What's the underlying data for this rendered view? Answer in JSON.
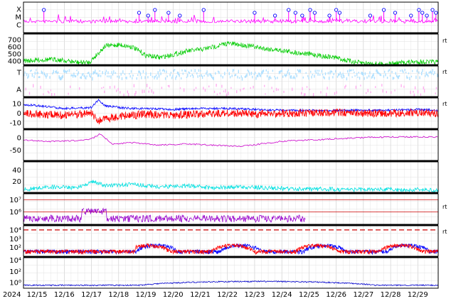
{
  "chart_data": {
    "type": "line",
    "x_axis": {
      "type": "date",
      "range": [
        "2024-12-14T12:00",
        "2024-12-29T18:00"
      ],
      "year_label": "2024",
      "tick_labels": [
        "12/15",
        "12/16",
        "12/17",
        "12/18",
        "12/19",
        "12/20",
        "12/21",
        "12/22",
        "12/23",
        "12/24",
        "12/25",
        "12/26",
        "12/27",
        "12/28",
        "12/29"
      ],
      "grid": true
    },
    "panels": [
      {
        "id": "xray-flare",
        "type": "scatter",
        "y_tick_labels": [
          "X",
          "M",
          "C"
        ],
        "colors": {
          "line": "#ff00ff",
          "marker": "#0000ff"
        },
        "flare_markers_x": [
          "2024-12-15T06:00",
          "2024-12-18T18:00",
          "2024-12-19T02:00",
          "2024-12-19T08:00",
          "2024-12-19T20:00",
          "2024-12-20T06:00",
          "2024-12-21T03:00",
          "2024-12-23T00:00",
          "2024-12-23T18:00",
          "2024-12-24T06:00",
          "2024-12-24T12:00",
          "2024-12-24T18:00",
          "2024-12-25T01:00",
          "2024-12-25T05:00",
          "2024-12-25T18:00",
          "2024-12-26T00:00",
          "2024-12-26T03:00",
          "2024-12-27T06:00",
          "2024-12-27T18:00",
          "2024-12-28T04:00",
          "2024-12-28T18:00",
          "2024-12-29T01:00",
          "2024-12-29T04:00",
          "2024-12-29T08:00",
          "2024-12-29T13:00",
          "2024-12-29T16:00"
        ]
      },
      {
        "id": "solar-wind-speed",
        "y_ticks": [
          400,
          500,
          600,
          700
        ],
        "ylim": [
          350,
          780
        ],
        "color": "#00cc00",
        "series": [
          {
            "x": [
              "2024-12-14T12:00",
              "2024-12-15T06:00",
              "2024-12-15T18:00",
              "2024-12-16T12:00",
              "2024-12-16T22:00",
              "2024-12-17T12:00",
              "2024-12-18T00:00",
              "2024-12-18T12:00",
              "2024-12-19T00:00",
              "2024-12-19T12:00",
              "2024-12-20T00:00",
              "2024-12-20T12:00",
              "2024-12-21T00:00",
              "2024-12-21T12:00",
              "2024-12-22T00:00",
              "2024-12-22T12:00",
              "2024-12-23T00:00",
              "2024-12-23T12:00",
              "2024-12-24T00:00",
              "2024-12-24T12:00",
              "2024-12-25T00:00",
              "2024-12-25T12:00",
              "2024-12-26T00:00",
              "2024-12-26T06:00",
              "2024-12-26T18:00",
              "2024-12-27T12:00",
              "2024-12-28T00:00",
              "2024-12-28T12:00",
              "2024-12-29T00:00",
              "2024-12-29T18:00"
            ],
            "values": [
              400,
              420,
              420,
              380,
              380,
              610,
              630,
              600,
              480,
              450,
              490,
              540,
              560,
              600,
              650,
              630,
              600,
              570,
              550,
              520,
              500,
              470,
              450,
              420,
              380,
              360,
              360,
              380,
              390,
              385
            ]
          }
        ]
      },
      {
        "id": "imf-sector",
        "type": "scatter",
        "y_tick_labels": [
          "T",
          "A"
        ],
        "colors": {
          "toward": "#b0e0ff",
          "away": "#ffb0f0"
        }
      },
      {
        "id": "imf-bz-bt",
        "y_ticks": [
          -10,
          0,
          10
        ],
        "ylim": [
          -16,
          16
        ],
        "series": [
          {
            "color": "#0000ff",
            "x": [
              "2024-12-14T12:00",
              "2024-12-15T00:00",
              "2024-12-16T00:00",
              "2024-12-17T00:00",
              "2024-12-17T06:00",
              "2024-12-17T12:00",
              "2024-12-18T00:00",
              "2024-12-18T12:00",
              "2024-12-19T00:00",
              "2024-12-20T00:00",
              "2024-12-21T00:00",
              "2024-12-22T00:00",
              "2024-12-23T00:00",
              "2024-12-24T00:00",
              "2024-12-25T00:00",
              "2024-12-26T00:00",
              "2024-12-27T00:00",
              "2024-12-28T00:00",
              "2024-12-29T00:00",
              "2024-12-29T18:00"
            ],
            "values": [
              9,
              8,
              5,
              6,
              14,
              8,
              6,
              5,
              5,
              4,
              5,
              5,
              4,
              3,
              3,
              3,
              3,
              3,
              4,
              3
            ]
          },
          {
            "color": "#ff0000",
            "x": [
              "2024-12-14T12:00",
              "2024-12-15T00:00",
              "2024-12-16T00:00",
              "2024-12-17T00:00",
              "2024-12-17T06:00",
              "2024-12-17T12:00",
              "2024-12-18T00:00",
              "2024-12-18T12:00",
              "2024-12-19T00:00",
              "2024-12-20T00:00",
              "2024-12-21T00:00",
              "2024-12-22T00:00",
              "2024-12-23T00:00",
              "2024-12-24T00:00",
              "2024-12-25T00:00",
              "2024-12-26T00:00",
              "2024-12-27T00:00",
              "2024-12-28T00:00",
              "2024-12-29T00:00",
              "2024-12-29T18:00"
            ],
            "values": [
              0,
              -1,
              -2,
              0,
              -8,
              -6,
              -3,
              -2,
              -1,
              -2,
              -1,
              0,
              -1,
              0,
              0,
              1,
              0,
              0,
              1,
              0
            ]
          }
        ]
      },
      {
        "id": "dst-index",
        "y_ticks": [
          -50,
          0
        ],
        "ylim": [
          -90,
          30
        ],
        "color": "#cc00cc",
        "series": [
          {
            "x": [
              "2024-12-14T12:00",
              "2024-12-15T12:00",
              "2024-12-16T12:00",
              "2024-12-17T00:00",
              "2024-12-17T08:00",
              "2024-12-17T18:00",
              "2024-12-18T12:00",
              "2024-12-19T12:00",
              "2024-12-20T12:00",
              "2024-12-21T12:00",
              "2024-12-22T12:00",
              "2024-12-23T06:00",
              "2024-12-24T00:00",
              "2024-12-25T00:00",
              "2024-12-26T00:00",
              "2024-12-27T00:00",
              "2024-12-28T00:00",
              "2024-12-29T00:00",
              "2024-12-29T18:00"
            ],
            "values": [
              -10,
              -15,
              -12,
              -5,
              15,
              -25,
              -20,
              -30,
              -25,
              -30,
              -35,
              -25,
              -15,
              -10,
              -5,
              0,
              2,
              3,
              2
            ]
          }
        ]
      },
      {
        "id": "kp-index",
        "y_ticks": [
          20,
          40
        ],
        "ylim": [
          0,
          55
        ],
        "color": "#00e0e0",
        "series": [
          {
            "x": [
              "2024-12-14T12:00",
              "2024-12-15T12:00",
              "2024-12-16T12:00",
              "2024-12-17T00:00",
              "2024-12-17T12:00",
              "2024-12-18T12:00",
              "2024-12-19T12:00",
              "2024-12-20T12:00",
              "2024-12-21T12:00",
              "2024-12-22T12:00",
              "2024-12-23T12:00",
              "2024-12-24T12:00",
              "2024-12-25T12:00",
              "2024-12-26T12:00",
              "2024-12-27T12:00",
              "2024-12-28T12:00",
              "2024-12-29T18:00"
            ],
            "values": [
              5,
              10,
              8,
              20,
              12,
              15,
              10,
              12,
              8,
              10,
              8,
              6,
              6,
              5,
              5,
              5,
              4
            ]
          }
        ]
      },
      {
        "id": "electron-flux",
        "scale": "log",
        "y_tick_labels": [
          "10⁶",
          "10⁷"
        ],
        "ylim": [
          100000,
          30000000
        ],
        "colors": {
          "line": "#9900cc",
          "threshold": "#cc0000"
        }
      },
      {
        "id": "proton-flux",
        "scale": "log",
        "y_tick_labels": [
          "10²",
          "10³",
          "10⁴"
        ],
        "ylim": [
          10,
          30000
        ],
        "colors": {
          "series_a": "#0000ff",
          "series_b": "#ff0000",
          "threshold": "#cc0000"
        }
      },
      {
        "id": "neutron-counts",
        "scale": "log",
        "y_tick_labels": [
          "10⁰",
          "10²",
          "10⁴"
        ],
        "ylim": [
          0.1,
          30000
        ],
        "color": "#0000cc"
      }
    ]
  }
}
